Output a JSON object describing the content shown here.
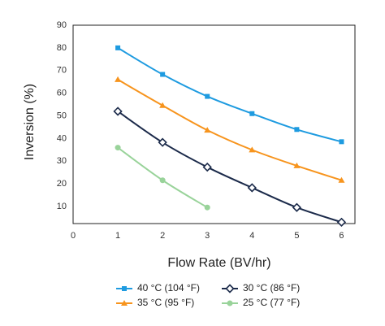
{
  "chart_data": {
    "type": "line",
    "x_label": "Flow Rate (BV/hr)",
    "y_label": "Inversion (%)",
    "x": [
      1,
      2,
      3,
      4,
      5,
      6
    ],
    "series": [
      {
        "name": "40 °C (104 °F)",
        "color": "#1e9be0",
        "marker": "square",
        "values": [
          80,
          68.3,
          58.6,
          51,
          44,
          38.6
        ]
      },
      {
        "name": "30 °C (86 °F)",
        "color": "#1b2a4a",
        "marker": "diamond",
        "values": [
          52,
          38.3,
          27.4,
          18.3,
          9.6,
          3.1
        ]
      },
      {
        "name": "35 °C (95 °F)",
        "color": "#f7941d",
        "marker": "triangle",
        "values": [
          66,
          54.6,
          43.7,
          35,
          28,
          21.6
        ]
      },
      {
        "name": "25 °C (77 °F)",
        "color": "#99d39a",
        "marker": "circle",
        "values": [
          36,
          21.6,
          9.6,
          null,
          null,
          null
        ]
      }
    ],
    "xlim": [
      0,
      6.3
    ],
    "xticks": [
      0,
      1,
      2,
      3,
      4,
      5,
      6
    ],
    "ylim": [
      2.5,
      90
    ],
    "yticks": [
      10,
      20,
      30,
      40,
      50,
      60,
      70,
      80,
      90
    ],
    "grid": false
  }
}
